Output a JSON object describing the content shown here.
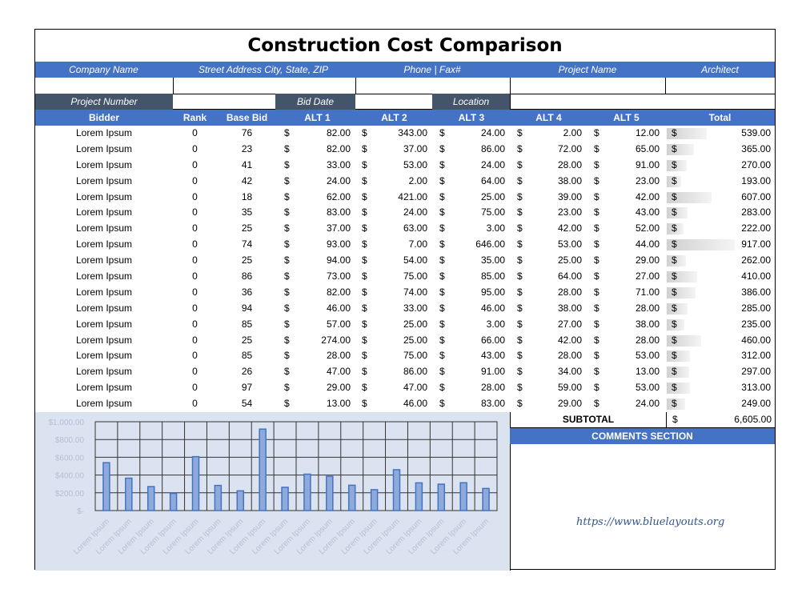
{
  "title": "Construction Cost Comparison",
  "header_fields": [
    "Company Name",
    "Street Address City, State, ZIP",
    "Phone | Fax#",
    "Project Name",
    "Architect"
  ],
  "project_labels": {
    "project_number": "Project Number",
    "bid_date": "Bid Date",
    "location": "Location"
  },
  "columns": [
    "Bidder",
    "Rank",
    "Base Bid",
    "ALT 1",
    "ALT 2",
    "ALT 3",
    "ALT 4",
    "ALT 5",
    "Total"
  ],
  "currency": "$",
  "rows": [
    {
      "bidder": "Lorem Ipsum",
      "rank": "0",
      "base": "76",
      "alt1": "82.00",
      "alt2": "343.00",
      "alt3": "24.00",
      "alt4": "2.00",
      "alt5": "12.00",
      "total": "539.00",
      "tv": 539
    },
    {
      "bidder": "Lorem Ipsum",
      "rank": "0",
      "base": "23",
      "alt1": "82.00",
      "alt2": "37.00",
      "alt3": "86.00",
      "alt4": "72.00",
      "alt5": "65.00",
      "total": "365.00",
      "tv": 365
    },
    {
      "bidder": "Lorem Ipsum",
      "rank": "0",
      "base": "41",
      "alt1": "33.00",
      "alt2": "53.00",
      "alt3": "24.00",
      "alt4": "28.00",
      "alt5": "91.00",
      "total": "270.00",
      "tv": 270
    },
    {
      "bidder": "Lorem Ipsum",
      "rank": "0",
      "base": "42",
      "alt1": "24.00",
      "alt2": "2.00",
      "alt3": "64.00",
      "alt4": "38.00",
      "alt5": "23.00",
      "total": "193.00",
      "tv": 193
    },
    {
      "bidder": "Lorem Ipsum",
      "rank": "0",
      "base": "18",
      "alt1": "62.00",
      "alt2": "421.00",
      "alt3": "25.00",
      "alt4": "39.00",
      "alt5": "42.00",
      "total": "607.00",
      "tv": 607
    },
    {
      "bidder": "Lorem Ipsum",
      "rank": "0",
      "base": "35",
      "alt1": "83.00",
      "alt2": "24.00",
      "alt3": "75.00",
      "alt4": "23.00",
      "alt5": "43.00",
      "total": "283.00",
      "tv": 283
    },
    {
      "bidder": "Lorem Ipsum",
      "rank": "0",
      "base": "25",
      "alt1": "37.00",
      "alt2": "63.00",
      "alt3": "3.00",
      "alt4": "42.00",
      "alt5": "52.00",
      "total": "222.00",
      "tv": 222
    },
    {
      "bidder": "Lorem Ipsum",
      "rank": "0",
      "base": "74",
      "alt1": "93.00",
      "alt2": "7.00",
      "alt3": "646.00",
      "alt4": "53.00",
      "alt5": "44.00",
      "total": "917.00",
      "tv": 917
    },
    {
      "bidder": "Lorem Ipsum",
      "rank": "0",
      "base": "25",
      "alt1": "94.00",
      "alt2": "54.00",
      "alt3": "35.00",
      "alt4": "25.00",
      "alt5": "29.00",
      "total": "262.00",
      "tv": 262
    },
    {
      "bidder": "Lorem Ipsum",
      "rank": "0",
      "base": "86",
      "alt1": "73.00",
      "alt2": "75.00",
      "alt3": "85.00",
      "alt4": "64.00",
      "alt5": "27.00",
      "total": "410.00",
      "tv": 410
    },
    {
      "bidder": "Lorem Ipsum",
      "rank": "0",
      "base": "36",
      "alt1": "82.00",
      "alt2": "74.00",
      "alt3": "95.00",
      "alt4": "28.00",
      "alt5": "71.00",
      "total": "386.00",
      "tv": 386
    },
    {
      "bidder": "Lorem Ipsum",
      "rank": "0",
      "base": "94",
      "alt1": "46.00",
      "alt2": "33.00",
      "alt3": "46.00",
      "alt4": "38.00",
      "alt5": "28.00",
      "total": "285.00",
      "tv": 285
    },
    {
      "bidder": "Lorem Ipsum",
      "rank": "0",
      "base": "85",
      "alt1": "57.00",
      "alt2": "25.00",
      "alt3": "3.00",
      "alt4": "27.00",
      "alt5": "38.00",
      "total": "235.00",
      "tv": 235
    },
    {
      "bidder": "Lorem Ipsum",
      "rank": "0",
      "base": "25",
      "alt1": "274.00",
      "alt2": "25.00",
      "alt3": "66.00",
      "alt4": "42.00",
      "alt5": "28.00",
      "total": "460.00",
      "tv": 460
    },
    {
      "bidder": "Lorem Ipsum",
      "rank": "0",
      "base": "85",
      "alt1": "28.00",
      "alt2": "75.00",
      "alt3": "43.00",
      "alt4": "28.00",
      "alt5": "53.00",
      "total": "312.00",
      "tv": 312
    },
    {
      "bidder": "Lorem Ipsum",
      "rank": "0",
      "base": "26",
      "alt1": "47.00",
      "alt2": "86.00",
      "alt3": "91.00",
      "alt4": "34.00",
      "alt5": "13.00",
      "total": "297.00",
      "tv": 297
    },
    {
      "bidder": "Lorem Ipsum",
      "rank": "0",
      "base": "97",
      "alt1": "29.00",
      "alt2": "47.00",
      "alt3": "28.00",
      "alt4": "59.00",
      "alt5": "53.00",
      "total": "313.00",
      "tv": 313
    },
    {
      "bidder": "Lorem Ipsum",
      "rank": "0",
      "base": "54",
      "alt1": "13.00",
      "alt2": "46.00",
      "alt3": "83.00",
      "alt4": "29.00",
      "alt5": "24.00",
      "total": "249.00",
      "tv": 249
    }
  ],
  "subtotal": {
    "label": "SUBTOTAL",
    "currency": "$",
    "value": "6,605.00"
  },
  "comments_label": "COMMENTS SECTION",
  "url": "https://www.bluelayouts.org",
  "colors": {
    "blue": "#4472c4",
    "dark": "#44546a",
    "chart_bg": "#dce3f0"
  },
  "chart_data": {
    "type": "bar",
    "categories": [
      "Lorem Ipsum",
      "Lorem Ipsum",
      "Lorem Ipsum",
      "Lorem Ipsum",
      "Lorem Ipsum",
      "Lorem Ipsum",
      "Lorem Ipsum",
      "Lorem Ipsum",
      "Lorem Ipsum",
      "Lorem Ipsum",
      "Lorem Ipsum",
      "Lorem Ipsum",
      "Lorem Ipsum",
      "Lorem Ipsum",
      "Lorem Ipsum",
      "Lorem Ipsum",
      "Lorem Ipsum",
      "Lorem Ipsum"
    ],
    "values": [
      539,
      365,
      270,
      193,
      607,
      283,
      222,
      917,
      262,
      410,
      386,
      285,
      235,
      460,
      312,
      297,
      313,
      249
    ],
    "ylim": [
      0,
      1000
    ],
    "yticks": [
      "$-",
      "$200.00",
      "$400.00",
      "$600.00",
      "$800.00",
      "$1,000.00"
    ],
    "title": "",
    "xlabel": "",
    "ylabel": ""
  }
}
